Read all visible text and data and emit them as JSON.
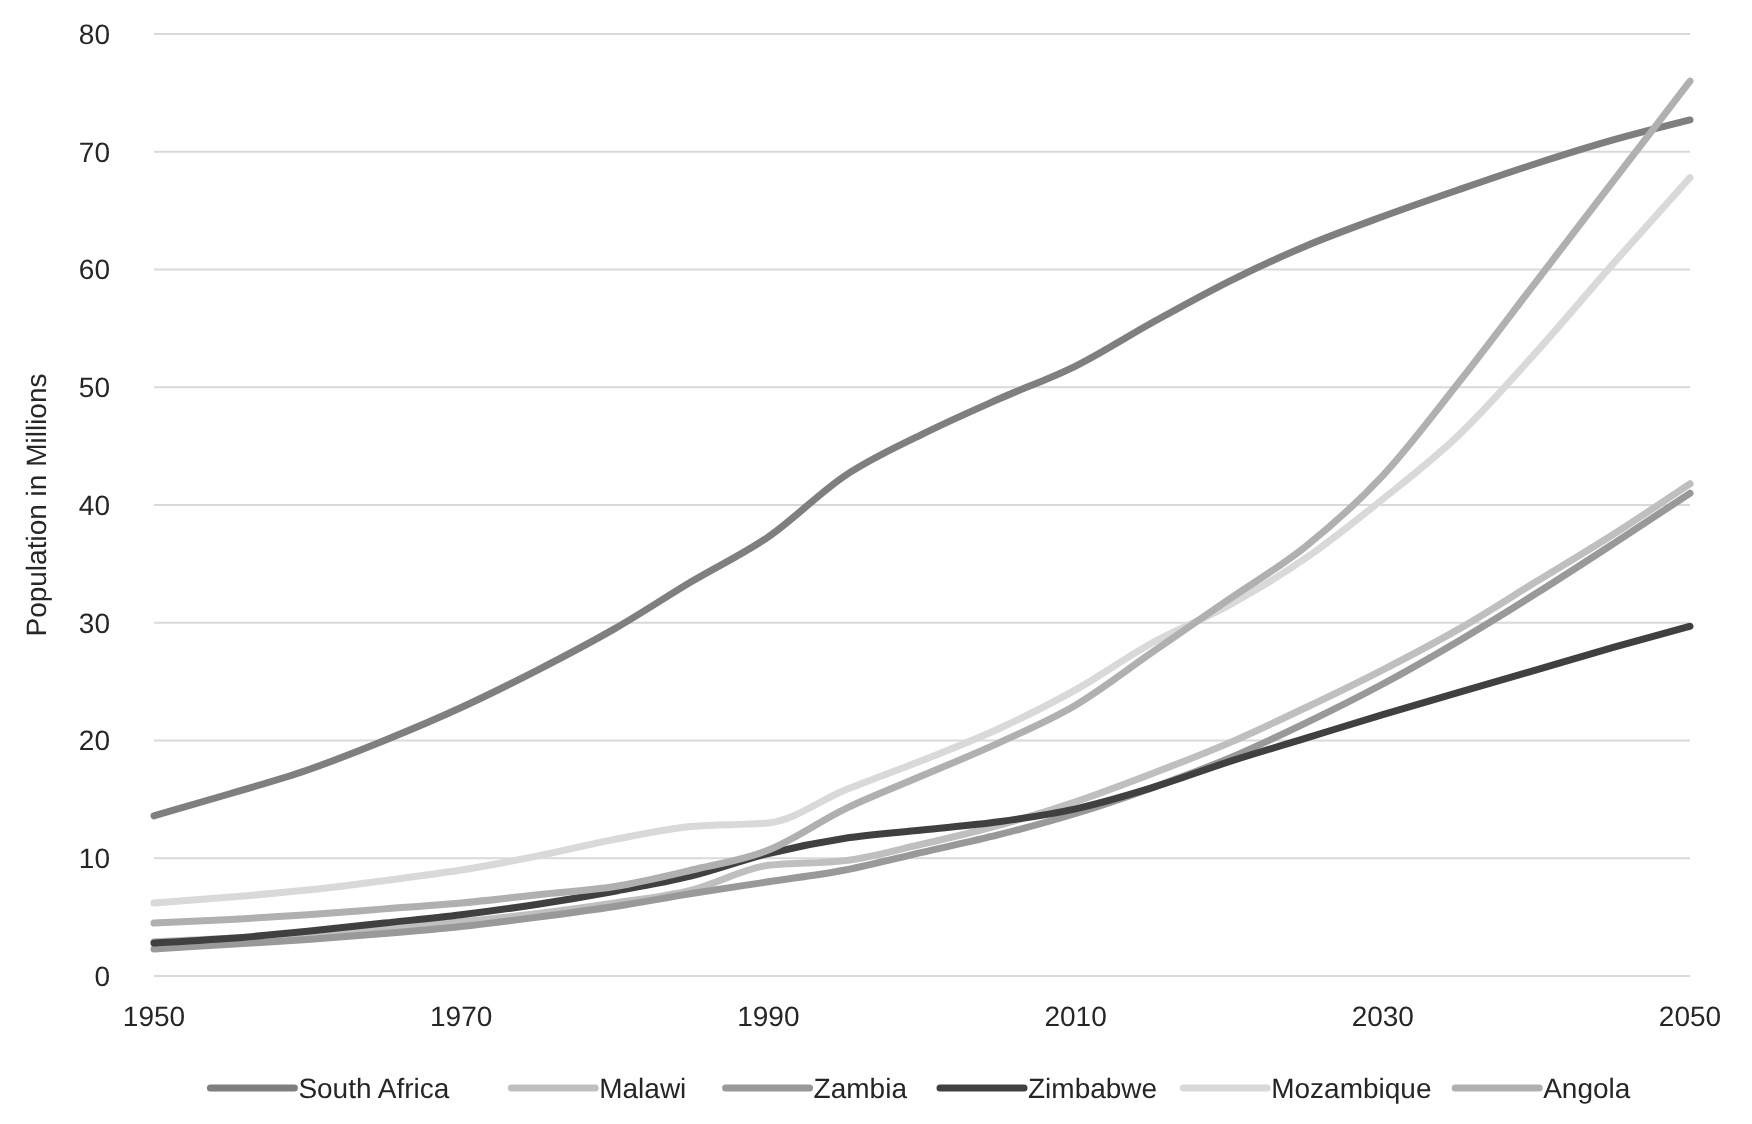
{
  "chart_data": {
    "type": "line",
    "ylabel": "Population in Millions",
    "x": [
      1950,
      1955,
      1960,
      1965,
      1970,
      1975,
      1980,
      1985,
      1990,
      1995,
      2000,
      2005,
      2010,
      2015,
      2020,
      2025,
      2030,
      2035,
      2040,
      2045,
      2050
    ],
    "xlim": [
      1950,
      2050
    ],
    "xticks": [
      1950,
      1970,
      1990,
      2010,
      2030,
      2050
    ],
    "ylim": [
      0,
      80
    ],
    "yticks": [
      0,
      10,
      20,
      30,
      40,
      50,
      60,
      70,
      80
    ],
    "grid": "y",
    "legend": "bottom",
    "marker": "none",
    "line_style": "solid",
    "series": [
      {
        "name": "South Africa",
        "color": "#7f7f7f",
        "values": [
          13.6,
          15.5,
          17.5,
          20,
          22.8,
          26,
          29.5,
          33.5,
          37.3,
          42.5,
          46,
          49,
          51.8,
          55.5,
          59,
          62,
          64.5,
          66.8,
          69,
          71,
          72.7
        ]
      },
      {
        "name": "Malawi",
        "color": "#bfbfbf",
        "values": [
          2.9,
          3.2,
          3.6,
          4.1,
          4.6,
          5.3,
          6.2,
          7.3,
          9.4,
          9.8,
          11.2,
          12.8,
          14.8,
          17.2,
          19.8,
          22.8,
          26,
          29.5,
          33.5,
          37.5,
          41.8
        ]
      },
      {
        "name": "Zambia",
        "color": "#999999",
        "values": [
          2.3,
          2.7,
          3.1,
          3.6,
          4.2,
          5,
          5.9,
          7,
          8,
          9,
          10.5,
          12,
          13.8,
          16,
          18.5,
          21.5,
          24.8,
          28.5,
          32.5,
          36.7,
          41
        ]
      },
      {
        "name": "Zimbabwe",
        "color": "#404040",
        "values": [
          2.8,
          3.2,
          3.8,
          4.5,
          5.2,
          6.1,
          7.2,
          8.5,
          10.4,
          11.7,
          12.4,
          13.1,
          14.2,
          16,
          18.2,
          20.2,
          22.2,
          24.1,
          26,
          27.9,
          29.7
        ]
      },
      {
        "name": "Mozambique",
        "color": "#d9d9d9",
        "values": [
          6.2,
          6.7,
          7.3,
          8.1,
          9,
          10.2,
          11.6,
          12.7,
          13,
          15.8,
          18.3,
          21,
          24.3,
          28.3,
          31.5,
          35.5,
          40.5,
          46,
          53,
          60.5,
          67.8
        ]
      },
      {
        "name": "Angola",
        "color": "#b0b0b0",
        "values": [
          4.5,
          4.8,
          5.2,
          5.7,
          6.2,
          6.9,
          7.6,
          9,
          10.7,
          14.2,
          17,
          19.8,
          23,
          27.5,
          32,
          36.5,
          42.5,
          50.5,
          59,
          67.5,
          76
        ]
      }
    ]
  }
}
